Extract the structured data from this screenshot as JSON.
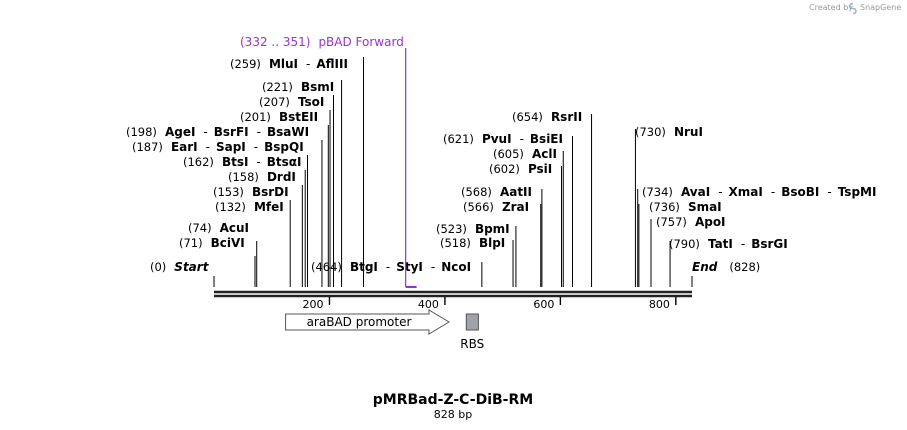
{
  "watermark": {
    "prefix": "Created by",
    "brand": "SnapGene"
  },
  "map": {
    "title": "pMRBad-Z-C-DiB-RM",
    "length_label": "828 bp",
    "length": 828,
    "colors": {
      "primer": "#9932cc",
      "rbs": "#a0a4a8",
      "backbone": "#222222"
    }
  },
  "sites": [
    {
      "pos": "(0)",
      "bp": 0,
      "names": [
        "Start"
      ],
      "style": "end"
    },
    {
      "pos": "(71)",
      "bp": 71,
      "names": [
        "BciVI"
      ]
    },
    {
      "pos": "(74)",
      "bp": 74,
      "names": [
        "AcuI"
      ]
    },
    {
      "pos": "(132)",
      "bp": 132,
      "names": [
        "MfeI"
      ]
    },
    {
      "pos": "(153)",
      "bp": 153,
      "names": [
        "BsrDI"
      ]
    },
    {
      "pos": "(158)",
      "bp": 158,
      "names": [
        "DrdI"
      ]
    },
    {
      "pos": "(162)",
      "bp": 162,
      "names": [
        "BtsI",
        "BtsαI"
      ]
    },
    {
      "pos": "(187)",
      "bp": 187,
      "names": [
        "EarI",
        "SapI",
        "BspQI"
      ]
    },
    {
      "pos": "(198)",
      "bp": 198,
      "names": [
        "AgeI",
        "BsrFI",
        "BsaWI"
      ]
    },
    {
      "pos": "(201)",
      "bp": 201,
      "names": [
        "BstEII"
      ]
    },
    {
      "pos": "(207)",
      "bp": 207,
      "names": [
        "TsoI"
      ]
    },
    {
      "pos": "(221)",
      "bp": 221,
      "names": [
        "BsmI"
      ]
    },
    {
      "pos": "(259)",
      "bp": 259,
      "names": [
        "MluI",
        "AflIII"
      ]
    },
    {
      "pos": "(464)",
      "bp": 464,
      "names": [
        "BtgI",
        "StyI",
        "NcoI"
      ]
    },
    {
      "pos": "(518)",
      "bp": 518,
      "names": [
        "BlpI"
      ]
    },
    {
      "pos": "(523)",
      "bp": 523,
      "names": [
        "BpmI"
      ]
    },
    {
      "pos": "(566)",
      "bp": 566,
      "names": [
        "ZraI"
      ]
    },
    {
      "pos": "(568)",
      "bp": 568,
      "names": [
        "AatII"
      ]
    },
    {
      "pos": "(602)",
      "bp": 602,
      "names": [
        "PsiI"
      ]
    },
    {
      "pos": "(605)",
      "bp": 605,
      "names": [
        "AclI"
      ]
    },
    {
      "pos": "(621)",
      "bp": 621,
      "names": [
        "PvuI",
        "BsiEI"
      ]
    },
    {
      "pos": "(654)",
      "bp": 654,
      "names": [
        "RsrII"
      ]
    },
    {
      "pos": "(730)",
      "bp": 730,
      "names": [
        "NruI"
      ]
    },
    {
      "pos": "(734)",
      "bp": 734,
      "names": [
        "AvaI",
        "XmaI",
        "BsoBI",
        "TspMI"
      ]
    },
    {
      "pos": "(736)",
      "bp": 736,
      "names": [
        "SmaI"
      ]
    },
    {
      "pos": "(757)",
      "bp": 757,
      "names": [
        "ApoI"
      ]
    },
    {
      "pos": "(790)",
      "bp": 790,
      "names": [
        "TatI",
        "BsrGI"
      ]
    },
    {
      "pos": "(828)",
      "bp": 828,
      "names": [
        "End"
      ],
      "style": "end"
    }
  ],
  "primer": {
    "range": "(332 .. 351)",
    "name": "pBAD Forward",
    "start": 332,
    "end": 351
  },
  "ticks": [
    200,
    400,
    600,
    800
  ],
  "features": [
    {
      "name": "araBAD promoter",
      "type": "promoter",
      "start": 124,
      "end": 407
    },
    {
      "name": "RBS",
      "type": "rbs",
      "start": 437,
      "end": 458
    }
  ]
}
